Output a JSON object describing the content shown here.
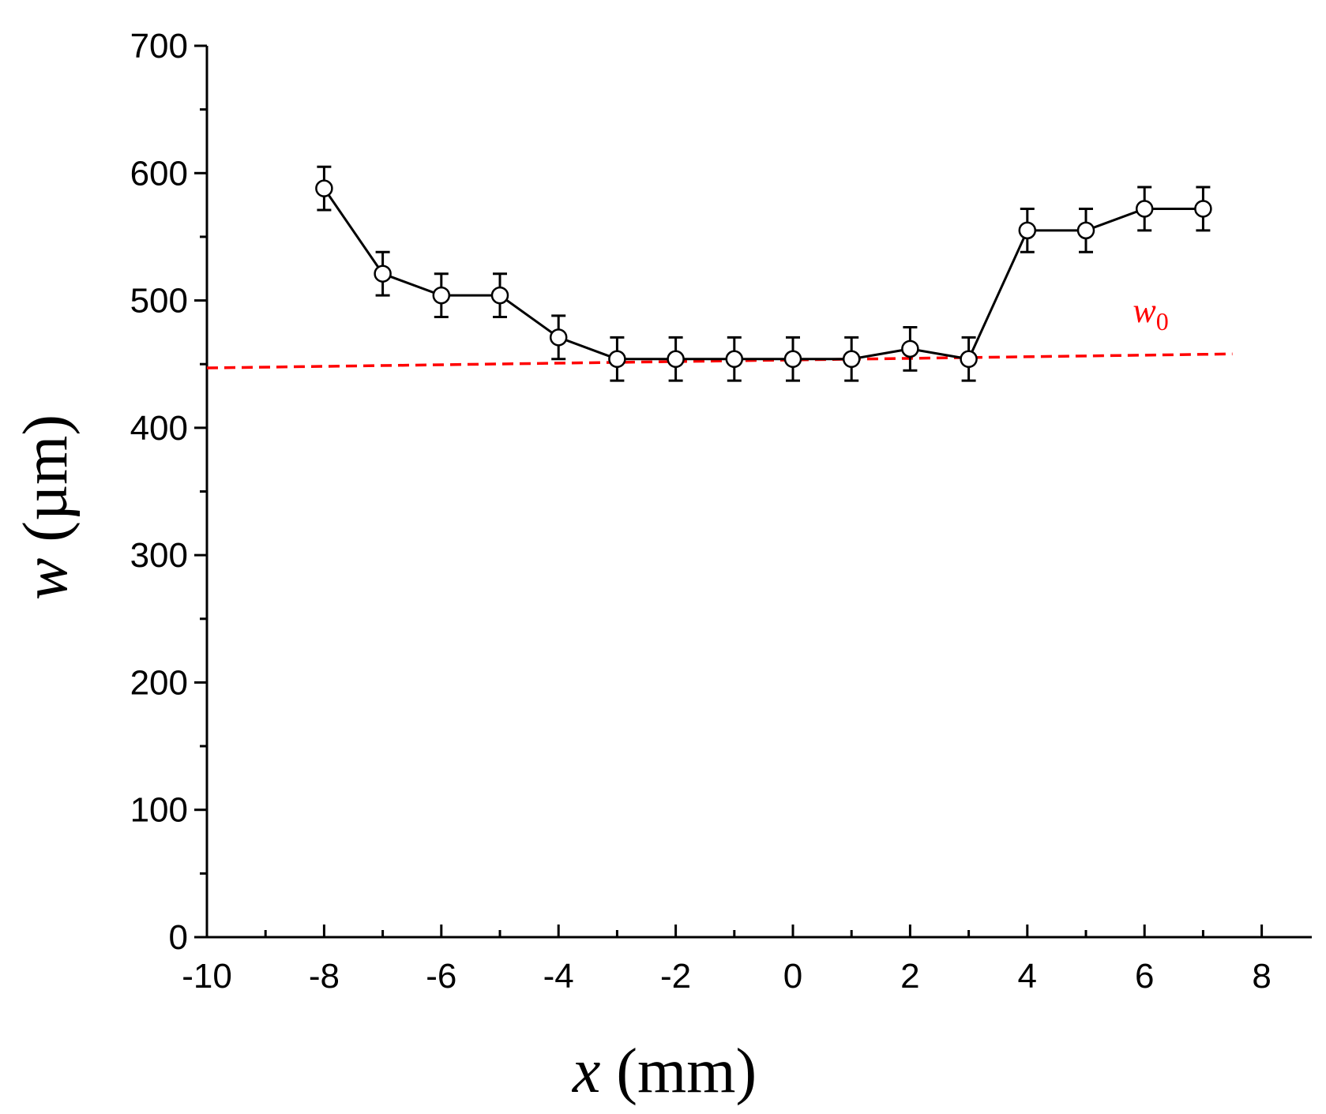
{
  "chart_data": {
    "type": "line",
    "title": "",
    "xlabel": "x (mm)",
    "xlabel_var": "x",
    "xlabel_unit": " (mm)",
    "ylabel": "w (µm)",
    "ylabel_var": "w",
    "ylabel_unit": " (µm)",
    "xlim": [
      -10,
      9
    ],
    "ylim": [
      0,
      700
    ],
    "xticks": [
      -10,
      -8,
      -6,
      -4,
      -2,
      0,
      2,
      4,
      6,
      8
    ],
    "xtick_labels": [
      "-10",
      "-8",
      "-6",
      "-4",
      "-2",
      "0",
      "2",
      "4",
      "6",
      "8"
    ],
    "yticks": [
      0,
      100,
      200,
      300,
      400,
      500,
      600,
      700
    ],
    "ytick_labels": [
      "0",
      "100",
      "200",
      "300",
      "400",
      "500",
      "600",
      "700"
    ],
    "grid": false,
    "series": [
      {
        "name": "w",
        "color": "#000000",
        "marker": "open-circle",
        "x": [
          -8,
          -7,
          -6,
          -5,
          -4,
          -3,
          -2,
          -1,
          0,
          1,
          2,
          3,
          4,
          5,
          6,
          7
        ],
        "y": [
          588,
          521,
          504,
          504,
          471,
          454,
          454,
          454,
          454,
          454,
          462,
          454,
          555,
          555,
          572,
          572
        ],
        "error": [
          17,
          17,
          17,
          17,
          17,
          17,
          17,
          17,
          17,
          17,
          17,
          17,
          17,
          17,
          17,
          17
        ]
      }
    ],
    "reference_line": {
      "label": "w",
      "label_sub": "0",
      "color": "#ff0000",
      "style": "dashed",
      "x": [
        -10,
        7.5
      ],
      "y": [
        447,
        458
      ]
    }
  }
}
